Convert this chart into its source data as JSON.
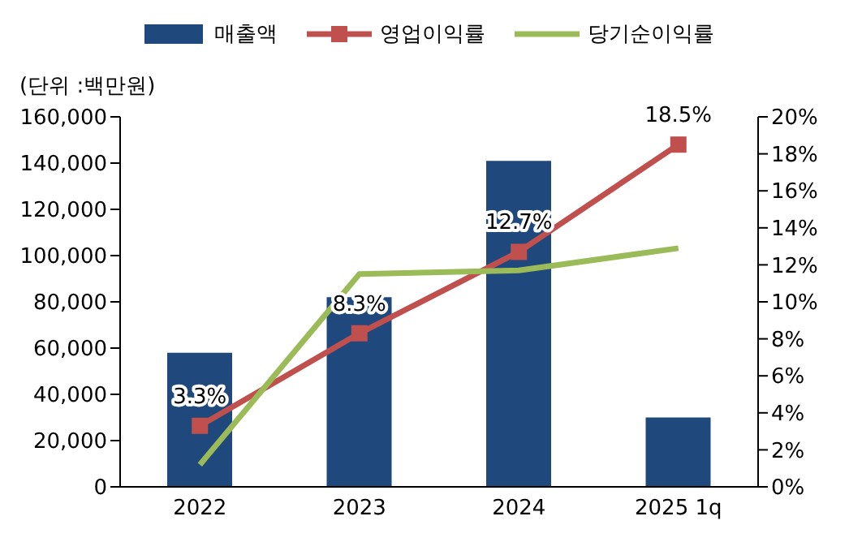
{
  "chart_data": {
    "type": "bar",
    "ylabel": "(단위 :백만원)",
    "categories": [
      "2022",
      "2023",
      "2024",
      "2025 1q"
    ],
    "series": [
      {
        "name": "매출액",
        "color": "#1f497d",
        "values": [
          58000,
          82000,
          141000,
          30000
        ]
      },
      {
        "name": "영업이익률",
        "type": "line",
        "axis": "y2",
        "color": "#c0504d",
        "marker": "square",
        "values": [
          3.3,
          8.3,
          12.7,
          18.5
        ],
        "value_labels": [
          "3.3%",
          "8.3%",
          "12.7%",
          "18.5%"
        ]
      },
      {
        "name": "당기순이익률",
        "type": "line",
        "axis": "y2",
        "color": "#9bbb59",
        "marker": "none",
        "values": [
          1.2,
          11.5,
          11.7,
          12.9
        ]
      }
    ],
    "ylim": [
      0,
      160000
    ],
    "yticks": [
      0,
      {
        "value": 20000,
        "label": "20,000"
      },
      {
        "value": 40000,
        "label": "40,000"
      },
      {
        "value": 60000,
        "label": "60,000"
      },
      {
        "value": 80000,
        "label": "80,000"
      },
      {
        "value": 100000,
        "label": "100,000"
      },
      {
        "value": 120000,
        "label": "120,000"
      },
      {
        "value": 140000,
        "label": "140,000"
      },
      {
        "value": 160000,
        "label": "160,000"
      }
    ],
    "y2lim": [
      0,
      20
    ],
    "y2ticks": [
      {
        "value": 0,
        "label": "0%"
      },
      {
        "value": 2,
        "label": "2%"
      },
      {
        "value": 4,
        "label": "4%"
      },
      {
        "value": 6,
        "label": "6%"
      },
      {
        "value": 8,
        "label": "8%"
      },
      {
        "value": 10,
        "label": "10%"
      },
      {
        "value": 12,
        "label": "12%"
      },
      {
        "value": 14,
        "label": "14%"
      },
      {
        "value": 16,
        "label": "16%"
      },
      {
        "value": 18,
        "label": "18%"
      },
      {
        "value": 20,
        "label": "20%"
      }
    ],
    "legend": "top",
    "grid": false
  }
}
